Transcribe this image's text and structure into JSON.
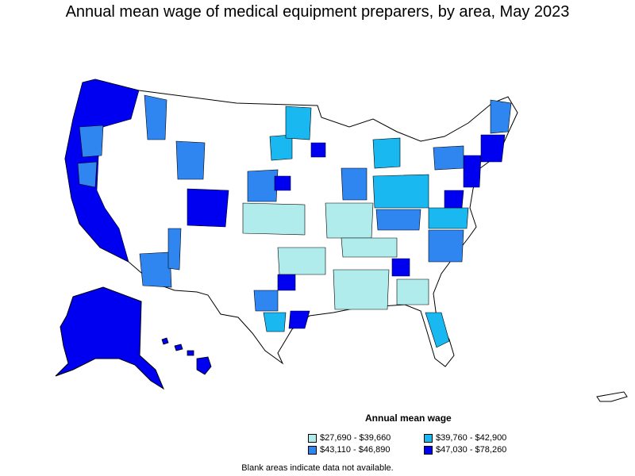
{
  "title": "Annual mean wage of medical equipment preparers, by area, May 2023",
  "legend": {
    "title": "Annual mean wage",
    "items": [
      {
        "label": "$27,690 - $39,660",
        "color": "#b0ecec"
      },
      {
        "label": "$39,760 - $42,900",
        "color": "#19b8f0"
      },
      {
        "label": "$43,110 - $46,890",
        "color": "#2f86f0"
      },
      {
        "label": "$47,030 - $78,260",
        "color": "#0000f0"
      }
    ]
  },
  "note": "Blank areas indicate data not available.",
  "colors": {
    "no_data": "#ffffff",
    "border": "#000000"
  }
}
